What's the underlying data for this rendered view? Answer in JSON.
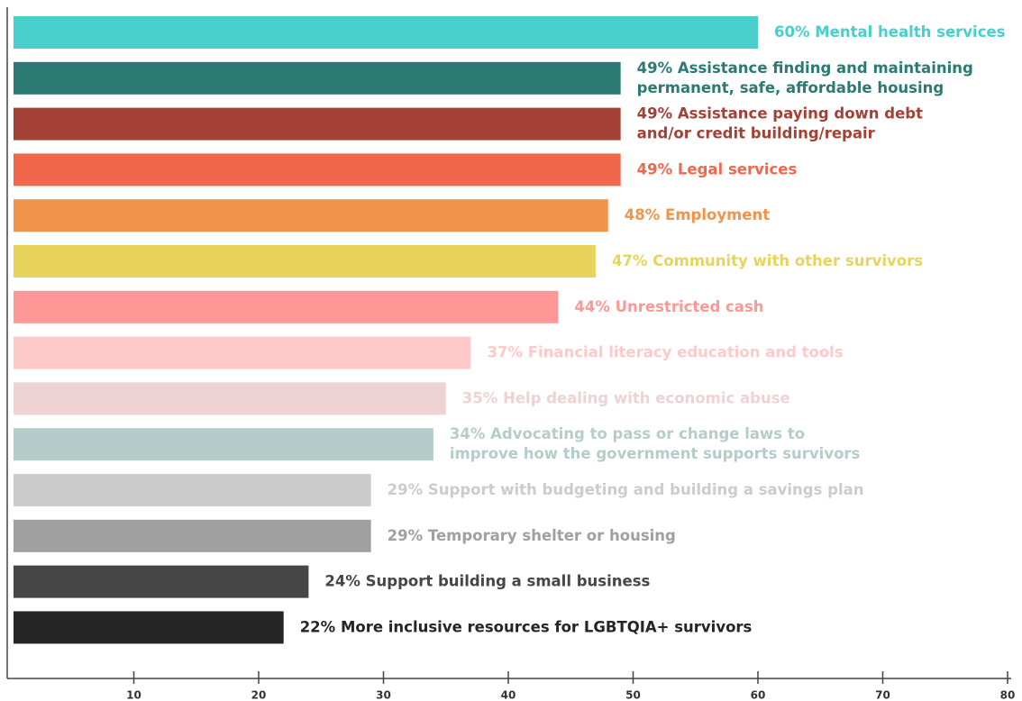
{
  "chart_data": {
    "type": "barh",
    "categories": [
      [
        "Mental health services"
      ],
      [
        "Assistance finding and maintaining",
        "permanent, safe, affordable housing"
      ],
      [
        "Assistance paying down debt",
        "and/or credit building/repair"
      ],
      [
        "Legal services"
      ],
      [
        "Employment"
      ],
      [
        "Community with other survivors"
      ],
      [
        "Unrestricted cash"
      ],
      [
        "Financial literacy education and tools"
      ],
      [
        "Help dealing with economic abuse"
      ],
      [
        "Advocating to pass or change laws to",
        "improve how the government supports survivors"
      ],
      [
        "Support with budgeting and building a savings plan"
      ],
      [
        "Temporary shelter or housing"
      ],
      [
        "Support building a small business"
      ],
      [
        "More inclusive resources for LGBTQIA+ survivors"
      ]
    ],
    "values": [
      60,
      49,
      49,
      49,
      48,
      47,
      44,
      37,
      35,
      34,
      29,
      29,
      24,
      22
    ],
    "value_labels": [
      "60%",
      "49%",
      "49%",
      "49%",
      "48%",
      "47%",
      "44%",
      "37%",
      "35%",
      "34%",
      "29%",
      "29%",
      "24%",
      "22%"
    ],
    "colors": [
      "#48cfcb",
      "#2b7a74",
      "#a44137",
      "#f2674b",
      "#f0944c",
      "#e8d45a",
      "#fd9896",
      "#fecac9",
      "#eed2d4",
      "#b5cdca",
      "#cccccc",
      "#a0a0a0",
      "#464646",
      "#252525"
    ],
    "xlim": [
      0,
      80
    ],
    "xticks": [
      10,
      20,
      30,
      40,
      50,
      60,
      70,
      80
    ]
  }
}
